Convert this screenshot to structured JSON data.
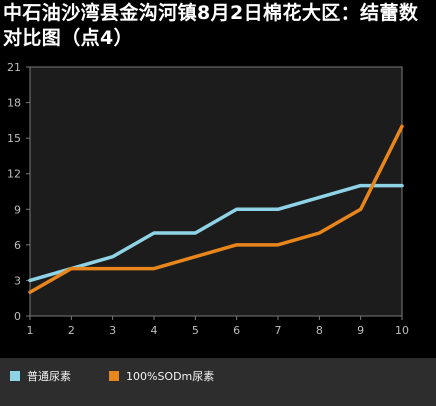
{
  "chart_data": {
    "type": "line",
    "title": "中石油沙湾县金沟河镇8月2日棉花大区：结蕾数对比图（点4）",
    "xlabel": "",
    "ylabel": "",
    "x": [
      1,
      2,
      3,
      4,
      5,
      6,
      7,
      8,
      9,
      10
    ],
    "xlim": [
      1,
      10
    ],
    "ylim": [
      0,
      21
    ],
    "yticks": [
      0,
      3,
      6,
      9,
      12,
      15,
      18,
      21
    ],
    "grid": false,
    "legend_position": "bottom-left",
    "series": [
      {
        "name": "普通尿素",
        "color": "#8fd3e6",
        "values": [
          3,
          4,
          5,
          7,
          7,
          9,
          9,
          10,
          11,
          11
        ]
      },
      {
        "name": "100%SODm尿素",
        "color": "#e8851b",
        "values": [
          2,
          4,
          4,
          4,
          5,
          6,
          6,
          7,
          9,
          16
        ]
      }
    ],
    "colors": {
      "background": "#000000",
      "plot_background": "#1c1c1c",
      "axis": "#7a7a7a",
      "legend_background": "#2d2d2d"
    }
  }
}
